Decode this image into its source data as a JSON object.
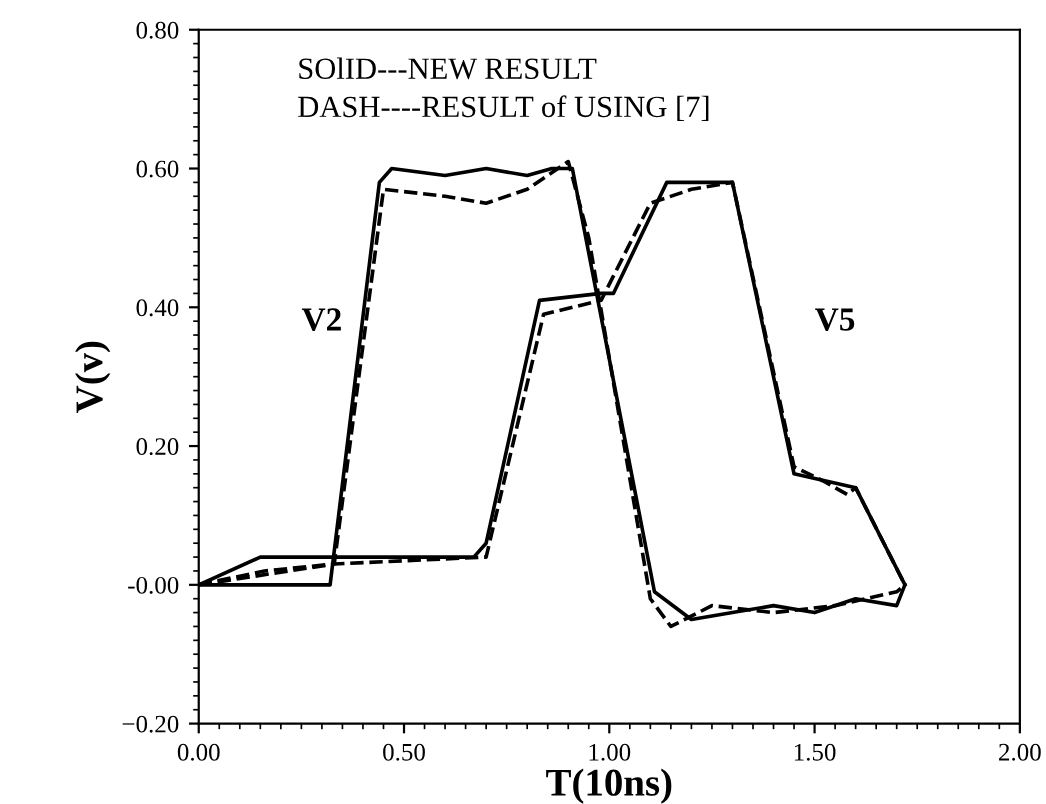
{
  "chart_data": {
    "type": "line",
    "xlabel": "T(10ns)",
    "ylabel": "V(v)",
    "xlim": [
      0,
      2
    ],
    "ylim": [
      -0.2,
      0.8
    ],
    "xticks": [
      {
        "value": 0,
        "label": "0.00"
      },
      {
        "value": 0.5,
        "label": "0.50"
      },
      {
        "value": 1,
        "label": "1.00"
      },
      {
        "value": 1.5,
        "label": "1.50"
      },
      {
        "value": 2,
        "label": "2.00"
      }
    ],
    "yticks": [
      {
        "value": -0.2,
        "label": "−0.20"
      },
      {
        "value": 0,
        "label": "-0.00"
      },
      {
        "value": 0.2,
        "label": "0.20"
      },
      {
        "value": 0.4,
        "label": "0.40"
      },
      {
        "value": 0.6,
        "label": "0.60"
      },
      {
        "value": 0.8,
        "label": "0.80"
      }
    ],
    "grid": false,
    "legend": false,
    "marker": "none",
    "series": [
      {
        "color": "#000000",
        "line_style": "solid",
        "x": [
          0,
          0.32,
          0.44,
          0.47,
          0.6,
          0.7,
          0.8,
          0.86,
          0.91,
          1.11,
          1.2,
          1.3,
          1.4,
          1.5,
          1.6,
          1.7,
          1.72
        ],
        "values": [
          0,
          0,
          0.58,
          0.6,
          0.59,
          0.6,
          0.59,
          0.6,
          0.6,
          -0.01,
          -0.05,
          -0.04,
          -0.03,
          -0.04,
          -0.02,
          -0.03,
          0
        ]
      },
      {
        "color": "#000000",
        "line_style": "solid",
        "x": [
          0,
          0.15,
          0.67,
          0.7,
          0.83,
          0.98,
          1.01,
          1.14,
          1.3,
          1.45,
          1.6,
          1.72
        ],
        "values": [
          0,
          0.04,
          0.04,
          0.06,
          0.41,
          0.42,
          0.42,
          0.58,
          0.58,
          0.16,
          0.14,
          0
        ]
      },
      {
        "color": "#000000",
        "line_style": "dashed",
        "x": [
          0,
          0.16,
          0.33,
          0.45,
          0.6,
          0.7,
          0.8,
          0.9,
          0.95,
          1.1,
          1.15,
          1.25,
          1.4,
          1.55,
          1.7,
          1.72
        ],
        "values": [
          0,
          0.02,
          0.03,
          0.57,
          0.56,
          0.55,
          0.57,
          0.61,
          0.5,
          -0.02,
          -0.06,
          -0.03,
          -0.04,
          -0.03,
          -0.01,
          0
        ]
      },
      {
        "color": "#000000",
        "line_style": "dashed",
        "x": [
          0,
          0.33,
          0.7,
          0.84,
          0.98,
          1.1,
          1.2,
          1.3,
          1.45,
          1.52,
          1.58,
          1.6,
          1.72
        ],
        "values": [
          0,
          0.03,
          0.04,
          0.39,
          0.41,
          0.55,
          0.57,
          0.58,
          0.17,
          0.15,
          0.13,
          0.14,
          0
        ]
      }
    ],
    "annotations": [
      "SOlID---NEW RESULT",
      "DASH----RESULT of USING [7]",
      "V2",
      "V5"
    ]
  }
}
